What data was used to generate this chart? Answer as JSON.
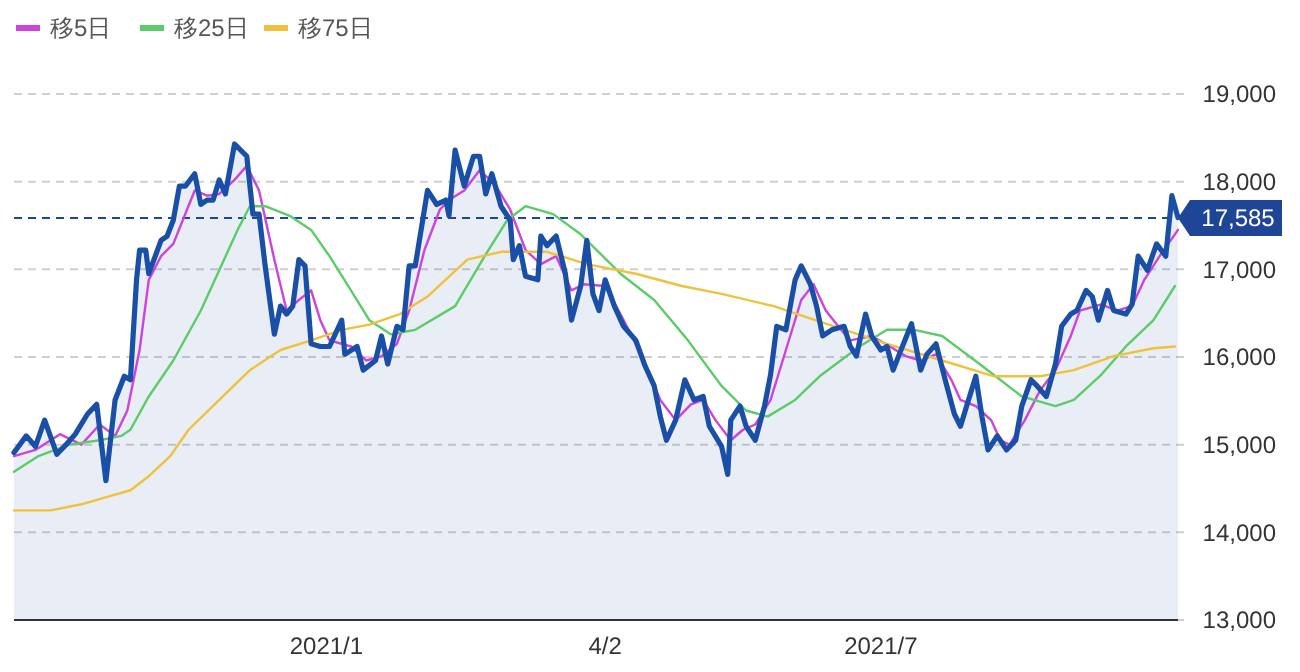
{
  "chart_data": {
    "type": "line",
    "xlim": [
      "2020-09-21",
      "2021-10-06"
    ],
    "xticks": [
      {
        "value": "2021-01-01",
        "label": "2021/1"
      },
      {
        "value": "2021-04-02",
        "label": "4/2"
      },
      {
        "value": "2021-07-01",
        "label": "2021/7"
      }
    ],
    "ylim": [
      13000,
      19000
    ],
    "yticks": [
      {
        "value": 13000,
        "label": "13,000"
      },
      {
        "value": 14000,
        "label": "14,000"
      },
      {
        "value": 15000,
        "label": "15,000"
      },
      {
        "value": 16000,
        "label": "16,000"
      },
      {
        "value": 17000,
        "label": "17,000"
      },
      {
        "value": 18000,
        "label": "18,000"
      },
      {
        "value": 19000,
        "label": "19,000"
      }
    ],
    "grid": "y",
    "legend": "top left",
    "marker": "none",
    "ref_lines": [
      {
        "axis": "y",
        "value": 17585,
        "label": "17,585",
        "color": "#1f4596",
        "line_style": "dashed"
      }
    ],
    "series": [
      {
        "type": "area",
        "color": "#1a4fa8",
        "x": [
          "2020-09-21",
          "2020-09-25",
          "2020-09-28",
          "2020-10-01",
          "2020-10-05",
          "2020-10-08",
          "2020-10-11",
          "2020-10-15",
          "2020-10-18",
          "2020-10-21",
          "2020-10-24",
          "2020-10-27",
          "2020-10-29",
          "2020-10-31",
          "2020-11-01",
          "2020-11-03",
          "2020-11-04",
          "2020-11-08",
          "2020-11-10",
          "2020-11-12",
          "2020-11-14",
          "2020-11-16",
          "2020-11-19",
          "2020-11-21",
          "2020-11-23",
          "2020-11-25",
          "2020-11-27",
          "2020-11-29",
          "2020-12-02",
          "2020-12-06",
          "2020-12-08",
          "2020-12-10",
          "2020-12-12",
          "2020-12-15",
          "2020-12-17",
          "2020-12-19",
          "2020-12-21",
          "2020-12-23",
          "2020-12-25",
          "2020-12-27",
          "2020-12-30",
          "2021-01-02",
          "2021-01-06",
          "2021-01-07",
          "2021-01-11",
          "2021-01-13",
          "2021-01-17",
          "2021-01-19",
          "2021-01-21",
          "2021-01-24",
          "2021-01-26",
          "2021-01-28",
          "2021-01-30",
          "2021-02-03",
          "2021-02-06",
          "2021-02-09",
          "2021-02-10",
          "2021-02-12",
          "2021-02-15",
          "2021-02-18",
          "2021-02-20",
          "2021-02-22",
          "2021-02-24",
          "2021-02-27",
          "2021-03-02",
          "2021-03-03",
          "2021-03-05",
          "2021-03-07",
          "2021-03-11",
          "2021-03-12",
          "2021-03-14",
          "2021-03-17",
          "2021-03-20",
          "2021-03-22",
          "2021-03-25",
          "2021-03-27",
          "2021-03-29",
          "2021-03-31",
          "2021-04-02",
          "2021-04-05",
          "2021-04-08",
          "2021-04-12",
          "2021-04-15",
          "2021-04-18",
          "2021-04-20",
          "2021-04-22",
          "2021-04-25",
          "2021-04-28",
          "2021-05-01",
          "2021-05-04",
          "2021-05-06",
          "2021-05-10",
          "2021-05-12",
          "2021-05-13",
          "2021-05-16",
          "2021-05-18",
          "2021-05-21",
          "2021-05-24",
          "2021-05-26",
          "2021-05-28",
          "2021-05-31",
          "2021-06-03",
          "2021-06-05",
          "2021-06-08",
          "2021-06-10",
          "2021-06-12",
          "2021-06-15",
          "2021-06-19",
          "2021-06-21",
          "2021-06-23",
          "2021-06-26",
          "2021-06-28",
          "2021-07-01",
          "2021-07-03",
          "2021-07-05",
          "2021-07-07",
          "2021-07-11",
          "2021-07-14",
          "2021-07-16",
          "2021-07-19",
          "2021-07-22",
          "2021-07-25",
          "2021-07-27",
          "2021-07-29",
          "2021-08-01",
          "2021-08-03",
          "2021-08-05",
          "2021-08-08",
          "2021-08-11",
          "2021-08-14",
          "2021-08-16",
          "2021-08-19",
          "2021-08-21",
          "2021-08-24",
          "2021-08-27",
          "2021-08-29",
          "2021-09-01",
          "2021-09-03",
          "2021-09-06",
          "2021-09-08",
          "2021-09-10",
          "2021-09-13",
          "2021-09-15",
          "2021-09-19",
          "2021-09-21",
          "2021-09-23",
          "2021-09-26",
          "2021-09-29",
          "2021-10-02",
          "2021-10-04",
          "2021-10-06"
        ],
        "values": [
          14910,
          15100,
          14980,
          15280,
          14890,
          15000,
          15120,
          15350,
          15460,
          14590,
          15510,
          15780,
          15740,
          16880,
          17220,
          17220,
          16950,
          17330,
          17380,
          17560,
          17950,
          17950,
          18090,
          17740,
          17790,
          17790,
          18020,
          17860,
          18430,
          18290,
          17630,
          17630,
          17040,
          16260,
          16580,
          16490,
          16580,
          17110,
          17040,
          16150,
          16120,
          16120,
          16420,
          16030,
          16120,
          15850,
          15960,
          16240,
          15920,
          16350,
          16310,
          17040,
          17040,
          17900,
          17740,
          17790,
          17610,
          18360,
          17950,
          18290,
          18290,
          17860,
          18090,
          17720,
          17560,
          17110,
          17270,
          16920,
          16880,
          17380,
          17270,
          17380,
          16950,
          16420,
          16810,
          17330,
          16720,
          16530,
          16880,
          16580,
          16350,
          16190,
          15900,
          15670,
          15320,
          15050,
          15280,
          15740,
          15510,
          15550,
          15210,
          14980,
          14660,
          15280,
          15440,
          15210,
          15050,
          15440,
          15800,
          16350,
          16310,
          16880,
          17040,
          16830,
          16580,
          16240,
          16310,
          16350,
          16120,
          16010,
          16490,
          16240,
          16080,
          16120,
          15850,
          16030,
          16380,
          15850,
          16030,
          16150,
          15740,
          15350,
          15210,
          15440,
          15780,
          15320,
          14940,
          15100,
          14940,
          15050,
          15440,
          15740,
          15670,
          15550,
          15920,
          16350,
          16490,
          16530,
          16760,
          16690,
          16420,
          16760,
          16530,
          16490,
          16600,
          17150,
          16990,
          17290,
          17150,
          17840,
          17590
        ]
      },
      {
        "name": "移5日",
        "color": "#cc44dd",
        "x": [
          "2020-09-21",
          "2020-09-28",
          "2020-10-06",
          "2020-10-13",
          "2020-10-19",
          "2020-10-24",
          "2020-10-28",
          "2020-11-01",
          "2020-11-04",
          "2020-11-08",
          "2020-11-12",
          "2020-11-19",
          "2020-11-23",
          "2020-11-27",
          "2020-12-02",
          "2020-12-06",
          "2020-12-10",
          "2020-12-15",
          "2020-12-19",
          "2020-12-23",
          "2020-12-27",
          "2020-12-30",
          "2021-01-02",
          "2021-01-09",
          "2021-01-14",
          "2021-01-19",
          "2021-01-24",
          "2021-01-28",
          "2021-02-02",
          "2021-02-07",
          "2021-02-10",
          "2021-02-15",
          "2021-02-20",
          "2021-02-25",
          "2021-03-02",
          "2021-03-07",
          "2021-03-12",
          "2021-03-17",
          "2021-03-22",
          "2021-03-26",
          "2021-04-02",
          "2021-04-08",
          "2021-04-14",
          "2021-04-20",
          "2021-04-25",
          "2021-04-30",
          "2021-05-04",
          "2021-05-08",
          "2021-05-13",
          "2021-05-17",
          "2021-05-21",
          "2021-05-26",
          "2021-05-31",
          "2021-06-05",
          "2021-06-09",
          "2021-06-13",
          "2021-06-18",
          "2021-06-21",
          "2021-06-28",
          "2021-07-04",
          "2021-07-09",
          "2021-07-14",
          "2021-07-19",
          "2021-07-24",
          "2021-07-27",
          "2021-08-01",
          "2021-08-06",
          "2021-08-09",
          "2021-08-12",
          "2021-08-17",
          "2021-08-22",
          "2021-08-27",
          "2021-09-01",
          "2021-09-04",
          "2021-09-11",
          "2021-09-16",
          "2021-09-21",
          "2021-09-25",
          "2021-09-30",
          "2021-10-06"
        ],
        "values": [
          14870,
          14940,
          15120,
          15000,
          15230,
          15100,
          15390,
          16080,
          16880,
          17150,
          17290,
          17900,
          17840,
          17860,
          18020,
          18180,
          17900,
          17110,
          16530,
          16650,
          16760,
          16420,
          16190,
          16120,
          15960,
          16010,
          16150,
          16530,
          17220,
          17680,
          17790,
          17900,
          18130,
          17970,
          17680,
          17220,
          17060,
          17150,
          16760,
          16830,
          16810,
          16420,
          16010,
          15510,
          15280,
          15460,
          15510,
          15280,
          15050,
          15170,
          15230,
          15510,
          16080,
          16650,
          16830,
          16530,
          16310,
          16190,
          16240,
          16120,
          16010,
          15960,
          16030,
          15740,
          15510,
          15440,
          15280,
          15050,
          15000,
          15280,
          15620,
          15850,
          16240,
          16530,
          16600,
          16530,
          16580,
          16880,
          17150,
          17450
        ]
      },
      {
        "name": "移25日",
        "color": "#5ccc6a",
        "x": [
          "2020-09-21",
          "2020-09-29",
          "2020-10-09",
          "2020-10-19",
          "2020-10-26",
          "2020-10-29",
          "2020-11-04",
          "2020-11-12",
          "2020-11-21",
          "2020-11-27",
          "2020-12-03",
          "2020-12-07",
          "2020-12-12",
          "2020-12-20",
          "2020-12-27",
          "2021-01-02",
          "2021-01-09",
          "2021-01-15",
          "2021-01-22",
          "2021-01-30",
          "2021-02-12",
          "2021-02-22",
          "2021-03-01",
          "2021-03-07",
          "2021-03-16",
          "2021-03-25",
          "2021-04-07",
          "2021-04-18",
          "2021-04-29",
          "2021-05-10",
          "2021-05-18",
          "2021-05-25",
          "2021-06-03",
          "2021-06-11",
          "2021-06-24",
          "2021-07-03",
          "2021-07-12",
          "2021-07-21",
          "2021-08-03",
          "2021-08-16",
          "2021-08-27",
          "2021-09-02",
          "2021-09-11",
          "2021-09-19",
          "2021-09-28",
          "2021-10-05"
        ],
        "values": [
          14690,
          14870,
          15000,
          15050,
          15100,
          15170,
          15550,
          15960,
          16530,
          16990,
          17450,
          17720,
          17720,
          17610,
          17450,
          17150,
          16760,
          16420,
          16260,
          16310,
          16580,
          17170,
          17560,
          17720,
          17630,
          17400,
          16950,
          16650,
          16190,
          15670,
          15390,
          15320,
          15510,
          15780,
          16120,
          16310,
          16310,
          16240,
          15900,
          15550,
          15440,
          15510,
          15800,
          16120,
          16420,
          16810
        ]
      },
      {
        "name": "移75日",
        "color": "#f0c23c",
        "x": [
          "2020-09-21",
          "2020-10-03",
          "2020-10-13",
          "2020-10-22",
          "2020-10-29",
          "2020-11-04",
          "2020-11-11",
          "2020-11-17",
          "2020-11-27",
          "2020-12-07",
          "2020-12-17",
          "2020-12-27",
          "2021-01-06",
          "2021-01-15",
          "2021-01-25",
          "2021-02-03",
          "2021-02-16",
          "2021-02-27",
          "2021-03-14",
          "2021-03-27",
          "2021-04-12",
          "2021-04-27",
          "2021-05-10",
          "2021-05-27",
          "2021-06-13",
          "2021-07-03",
          "2021-07-21",
          "2021-08-07",
          "2021-08-22",
          "2021-09-02",
          "2021-09-15",
          "2021-09-28",
          "2021-10-05"
        ],
        "values": [
          14250,
          14250,
          14320,
          14410,
          14480,
          14640,
          14870,
          15170,
          15510,
          15850,
          16080,
          16190,
          16310,
          16370,
          16490,
          16690,
          17110,
          17200,
          17200,
          17060,
          16950,
          16810,
          16720,
          16580,
          16380,
          16150,
          15960,
          15780,
          15780,
          15850,
          16010,
          16100,
          16120
        ]
      }
    ]
  }
}
